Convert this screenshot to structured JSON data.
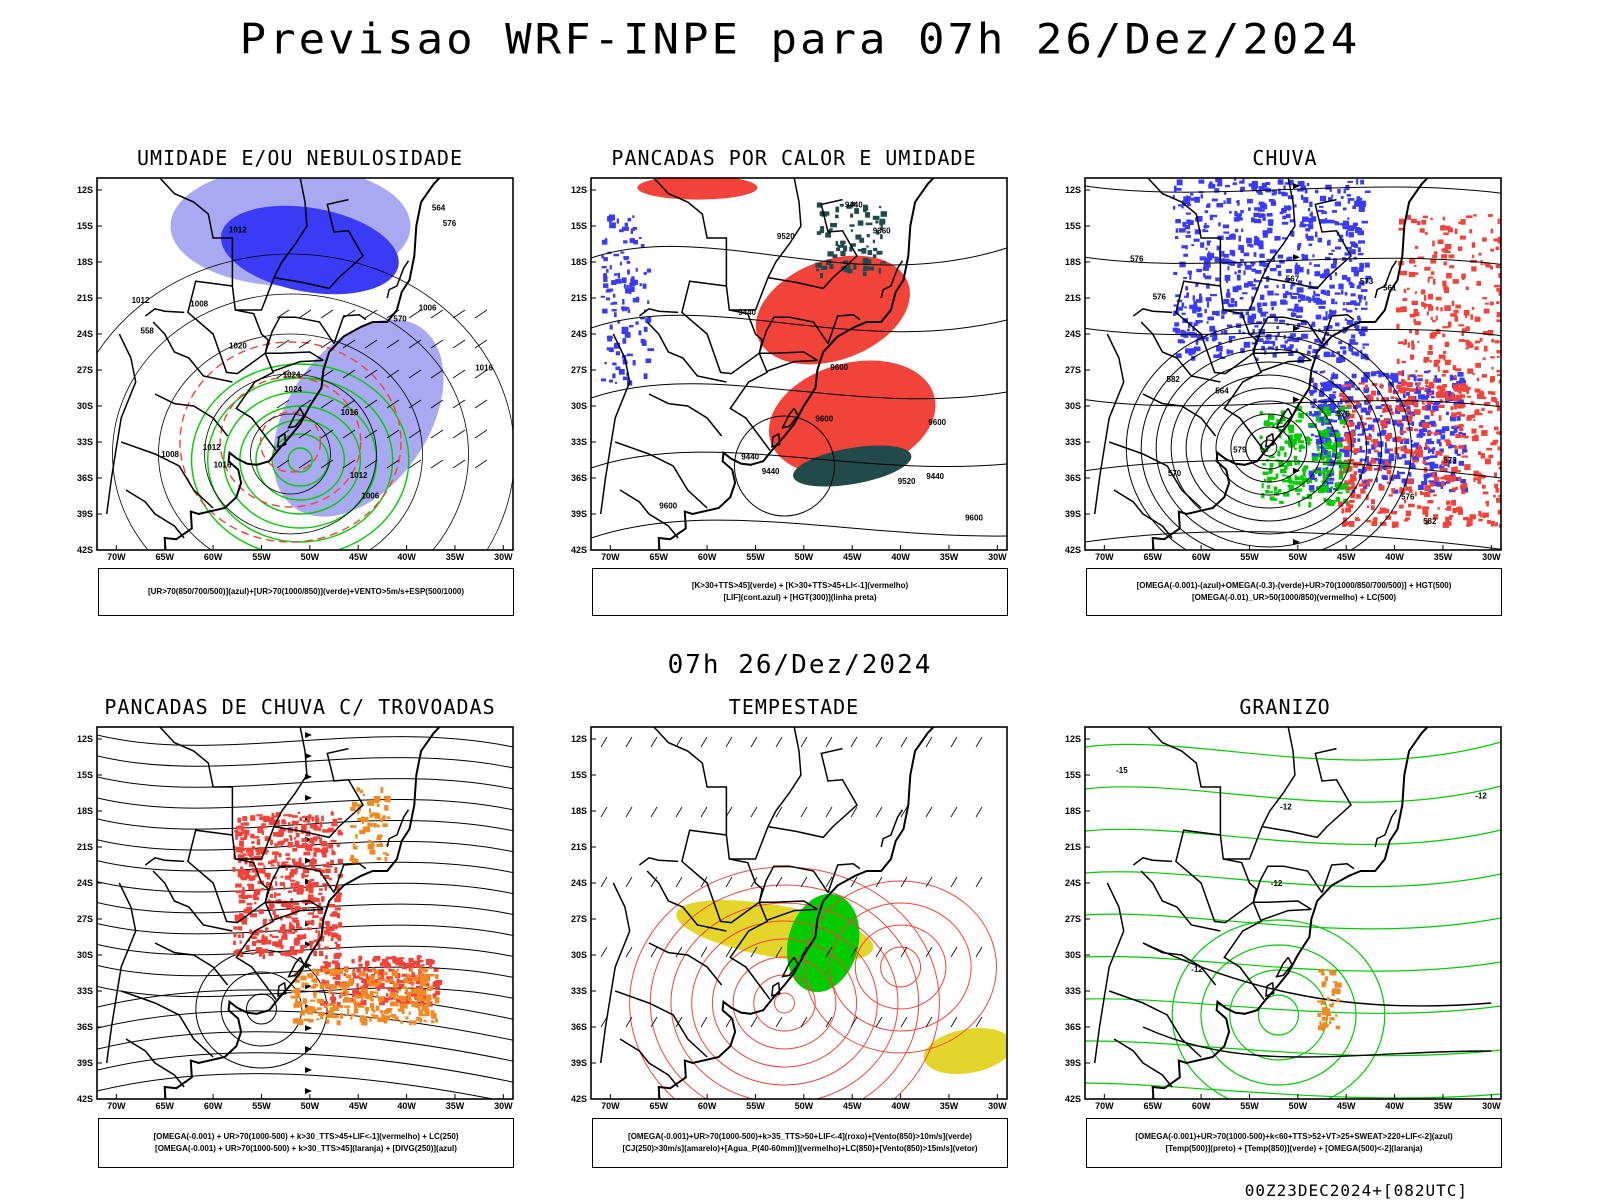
{
  "header": {
    "title": "Previsao WRF-INPE  para 07h 26/Dez/2024",
    "mid_title": "07h 26/Dez/2024",
    "footer": "00Z23DEC2024+[082UTC]"
  },
  "axes": {
    "lat_labels": [
      "12S",
      "15S",
      "18S",
      "21S",
      "24S",
      "27S",
      "30S",
      "33S",
      "36S",
      "39S",
      "42S"
    ],
    "lon_labels": [
      "70W",
      "65W",
      "60W",
      "55W",
      "50W",
      "45W",
      "40W",
      "35W",
      "30W"
    ]
  },
  "colors": {
    "blue": "#3b3bf5",
    "light_blue": "#a9a9f2",
    "green": "#00cc00",
    "red": "#f2433a",
    "dark_teal": "#234a4a",
    "orange": "#f08a24",
    "yellow": "#e3d52a"
  },
  "panels": [
    {
      "title": "UMIDADE E/OU NEBULOSIDADE",
      "legend": [
        "[UR>70(850/700/500)](azul)+[UR>70(1000/850)](verde)+VENTO>5m/s+ESP(500/1000)"
      ],
      "contour_labels": [
        "1006",
        "1012",
        "1012",
        "1008",
        "1006",
        "1012",
        "1016",
        "1020",
        "1024",
        "1016",
        "1008",
        "1012",
        "1024",
        "1016",
        "570",
        "564",
        "558",
        "576"
      ]
    },
    {
      "title": "PANCADAS POR CALOR E UMIDADE",
      "legend": [
        "[K>30+TTS>45](verde)  +  [K>30+TTS>45+LI<-1](vermelho)",
        "[LIF](cont.azul)  +  [HGT(300)](linha preta)"
      ],
      "contour_labels": [
        "9600",
        "9600",
        "9600",
        "9600",
        "9520",
        "9440",
        "9440",
        "9360",
        "9520",
        "9440",
        "9600",
        "9440",
        "9440"
      ]
    },
    {
      "title": "CHUVA",
      "legend": [
        "[OMEGA(-0.001)-(azul)+OMEGA(-0.3)-(verde)+UR>70(1000/850/700/500)]  +  HGT(500)",
        "[OMEGA(-0.01)_UR>50(1000/850)(vermelho)  +  LC(500)"
      ],
      "contour_labels": [
        "582",
        "582",
        "576",
        "576",
        "573",
        "576",
        "570",
        "564",
        "561",
        "567",
        "573",
        "576",
        "579"
      ]
    },
    {
      "title": "PANCADAS DE CHUVA C/ TROVOADAS",
      "legend": [
        "[OMEGA(-0.001)  +  UR>70(1000-500)  +  k>30_TTS>45+LIF<-1](vermelho)  +  LC(250)",
        "[OMEGA(-0.001)  +  UR>70(1000-500)  +  k>30_TTS>45](laranja)  +  [DIVG(250)](azul)"
      ],
      "contour_labels": []
    },
    {
      "title": "TEMPESTADE",
      "legend": [
        "[OMEGA(-0.001)+UR>70(1000-500)+k>35_TTS>50+LIF<-4](roxo)+[Vento(850)>10m/s](verde)",
        "[CJ(250)>30m/s](amarelo)+[Agua_P(40-60mm)](vermelho)+LC(850)+[Vento(850)>15m/s](vetor)"
      ],
      "contour_labels": []
    },
    {
      "title": "GRANIZO",
      "legend": [
        "[OMEGA(-0.001)+UR>70(1000-500)+k<60+TTS>52+VT>25+SWEAT>220+LIF<-2](azul)",
        "[Temp(500)](preto)  +  [Temp(850)](verde)  +  [OMEGA(500)<-2](laranja)"
      ],
      "contour_labels": [
        "-12",
        "-12",
        "-12",
        "-12",
        "-15"
      ]
    }
  ]
}
